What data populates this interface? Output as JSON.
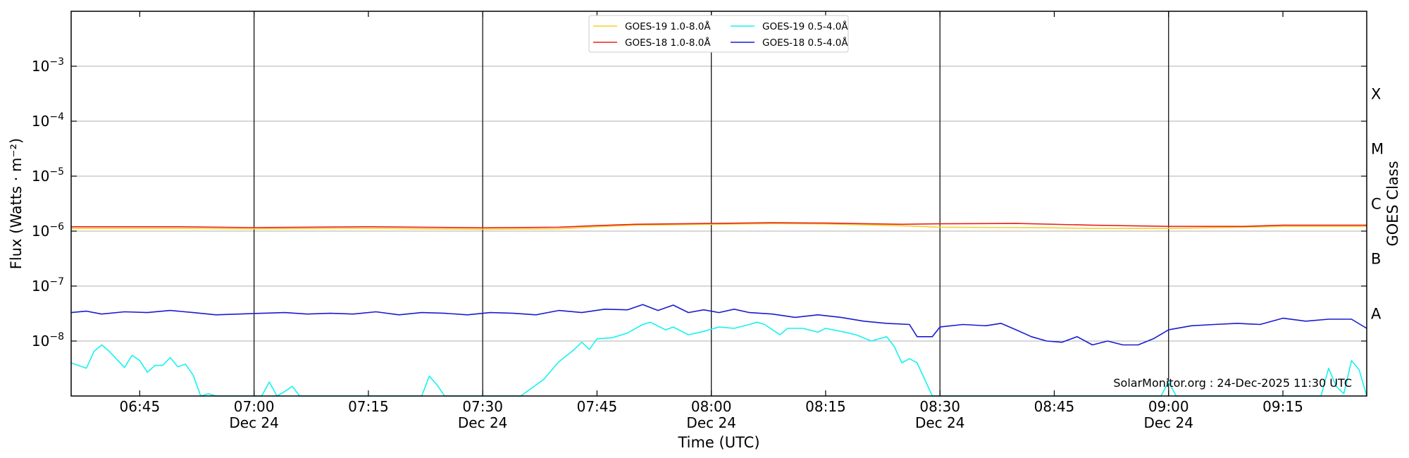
{
  "chart_data": {
    "type": "line",
    "xlabel": "Time (UTC)",
    "ylabel": "Flux (Watts · m⁻²)",
    "y2label": "GOES Class",
    "yscale": "log",
    "xlim": [
      "06:36",
      "09:26"
    ],
    "ylim": [
      1e-09,
      0.01
    ],
    "grid": "horizontal",
    "legend_position": "top-center",
    "credit": "SolarMonitor.org : 24-Dec-2025 11:30 UTC",
    "x_ticks": [
      {
        "time": "06:45",
        "label": "06:45",
        "date": ""
      },
      {
        "time": "07:00",
        "label": "07:00",
        "date": "Dec 24"
      },
      {
        "time": "07:15",
        "label": "07:15",
        "date": ""
      },
      {
        "time": "07:30",
        "label": "07:30",
        "date": "Dec 24"
      },
      {
        "time": "07:45",
        "label": "07:45",
        "date": ""
      },
      {
        "time": "08:00",
        "label": "08:00",
        "date": "Dec 24"
      },
      {
        "time": "08:15",
        "label": "08:15",
        "date": ""
      },
      {
        "time": "08:30",
        "label": "08:30",
        "date": "Dec 24"
      },
      {
        "time": "08:45",
        "label": "08:45",
        "date": ""
      },
      {
        "time": "09:00",
        "label": "09:00",
        "date": "Dec 24"
      },
      {
        "time": "09:15",
        "label": "09:15",
        "date": ""
      }
    ],
    "vertical_lines": [
      "07:00",
      "07:30",
      "08:00",
      "08:30",
      "09:00"
    ],
    "y_ticks": [
      {
        "value": 1e-08,
        "base": "10",
        "exp": "−8"
      },
      {
        "value": 1e-07,
        "base": "10",
        "exp": "−7"
      },
      {
        "value": 1e-06,
        "base": "10",
        "exp": "−6"
      },
      {
        "value": 1e-05,
        "base": "10",
        "exp": "−5"
      },
      {
        "value": 0.0001,
        "base": "10",
        "exp": "−4"
      },
      {
        "value": 0.001,
        "base": "10",
        "exp": "−3"
      }
    ],
    "class_labels": [
      {
        "label": "A",
        "value": 1e-08
      },
      {
        "label": "B",
        "value": 1e-07
      },
      {
        "label": "C",
        "value": 1e-06
      },
      {
        "label": "M",
        "value": 1e-05
      },
      {
        "label": "X",
        "value": 0.0001
      }
    ],
    "series": [
      {
        "name": "GOES-19 1.0-8.0Å",
        "color": "#f2d22e",
        "points": [
          [
            "06:36",
            1.12e-06
          ],
          [
            "06:50",
            1.12e-06
          ],
          [
            "07:00",
            1.1e-06
          ],
          [
            "07:15",
            1.12e-06
          ],
          [
            "07:30",
            1.08e-06
          ],
          [
            "07:40",
            1.1e-06
          ],
          [
            "07:45",
            1.2e-06
          ],
          [
            "07:50",
            1.28e-06
          ],
          [
            "08:00",
            1.33e-06
          ],
          [
            "08:08",
            1.37e-06
          ],
          [
            "08:15",
            1.35e-06
          ],
          [
            "08:25",
            1.25e-06
          ],
          [
            "08:30",
            1.18e-06
          ],
          [
            "08:45",
            1.15e-06
          ],
          [
            "08:50",
            1.12e-06
          ],
          [
            "09:00",
            1.12e-06
          ],
          [
            "09:10",
            1.18e-06
          ],
          [
            "09:15",
            1.22e-06
          ],
          [
            "09:26",
            1.22e-06
          ]
        ]
      },
      {
        "name": "GOES-18 1.0-8.0Å",
        "color": "#e8221a",
        "points": [
          [
            "06:36",
            1.2e-06
          ],
          [
            "06:50",
            1.2e-06
          ],
          [
            "07:00",
            1.16e-06
          ],
          [
            "07:15",
            1.2e-06
          ],
          [
            "07:30",
            1.15e-06
          ],
          [
            "07:40",
            1.18e-06
          ],
          [
            "07:45",
            1.26e-06
          ],
          [
            "07:50",
            1.33e-06
          ],
          [
            "08:00",
            1.38e-06
          ],
          [
            "08:08",
            1.42e-06
          ],
          [
            "08:15",
            1.4e-06
          ],
          [
            "08:25",
            1.33e-06
          ],
          [
            "08:30",
            1.36e-06
          ],
          [
            "08:40",
            1.38e-06
          ],
          [
            "08:50",
            1.28e-06
          ],
          [
            "09:00",
            1.22e-06
          ],
          [
            "09:10",
            1.22e-06
          ],
          [
            "09:15",
            1.28e-06
          ],
          [
            "09:26",
            1.28e-06
          ]
        ]
      },
      {
        "name": "GOES-19 0.5-4.0Å",
        "color": "#17f2f0",
        "points": [
          [
            "06:36",
            4e-09
          ],
          [
            "06:38",
            3.2e-09
          ],
          [
            "06:39",
            6.5e-09
          ],
          [
            "06:40",
            8.5e-09
          ],
          [
            "06:41",
            6.5e-09
          ],
          [
            "06:43",
            3.3e-09
          ],
          [
            "06:44",
            5.5e-09
          ],
          [
            "06:45",
            4.4e-09
          ],
          [
            "06:46",
            2.7e-09
          ],
          [
            "06:47",
            3.6e-09
          ],
          [
            "06:48",
            3.6e-09
          ],
          [
            "06:49",
            5e-09
          ],
          [
            "06:50",
            3.4e-09
          ],
          [
            "06:51",
            3.8e-09
          ],
          [
            "06:52",
            2.4e-09
          ],
          [
            "06:53",
            8e-10
          ],
          [
            "06:54",
            1.1e-09
          ],
          [
            "06:55",
            9e-10
          ],
          [
            "07:01",
            8e-10
          ],
          [
            "07:02",
            1.8e-09
          ],
          [
            "07:03",
            8e-10
          ],
          [
            "07:04",
            1.2e-09
          ],
          [
            "07:05",
            1.5e-09
          ],
          [
            "07:06",
            9e-10
          ],
          [
            "07:22",
            9e-10
          ],
          [
            "07:23",
            2.3e-09
          ],
          [
            "07:24",
            1.6e-09
          ],
          [
            "07:25",
            9e-10
          ],
          [
            "07:35",
            9e-10
          ],
          [
            "07:38",
            2e-09
          ],
          [
            "07:40",
            4.2e-09
          ],
          [
            "07:42",
            7e-09
          ],
          [
            "07:43",
            9.5e-09
          ],
          [
            "07:44",
            7e-09
          ],
          [
            "07:45",
            1.1e-08
          ],
          [
            "07:47",
            1.15e-08
          ],
          [
            "07:49",
            1.4e-08
          ],
          [
            "07:51",
            2e-08
          ],
          [
            "07:52",
            2.2e-08
          ],
          [
            "07:54",
            1.6e-08
          ],
          [
            "07:55",
            1.8e-08
          ],
          [
            "07:57",
            1.3e-08
          ],
          [
            "07:59",
            1.5e-08
          ],
          [
            "08:01",
            1.8e-08
          ],
          [
            "08:03",
            1.7e-08
          ],
          [
            "08:05",
            2e-08
          ],
          [
            "08:06",
            2.2e-08
          ],
          [
            "08:07",
            2e-08
          ],
          [
            "08:09",
            1.3e-08
          ],
          [
            "08:10",
            1.7e-08
          ],
          [
            "08:12",
            1.7e-08
          ],
          [
            "08:14",
            1.45e-08
          ],
          [
            "08:15",
            1.7e-08
          ],
          [
            "08:17",
            1.5e-08
          ],
          [
            "08:19",
            1.3e-08
          ],
          [
            "08:21",
            1e-08
          ],
          [
            "08:23",
            1.2e-08
          ],
          [
            "08:24",
            8e-09
          ],
          [
            "08:25",
            4e-09
          ],
          [
            "08:26",
            4.8e-09
          ],
          [
            "08:27",
            4e-09
          ],
          [
            "08:28",
            2e-09
          ],
          [
            "08:29",
            1e-09
          ],
          [
            "08:30",
            8e-10
          ],
          [
            "08:59",
            8e-10
          ],
          [
            "09:00",
            1.8e-09
          ],
          [
            "09:01",
            1e-09
          ],
          [
            "09:02",
            8e-10
          ],
          [
            "09:20",
            8e-10
          ],
          [
            "09:21",
            3.2e-09
          ],
          [
            "09:22",
            1.5e-09
          ],
          [
            "09:23",
            1.1e-09
          ],
          [
            "09:24",
            4.4e-09
          ],
          [
            "09:25",
            3e-09
          ],
          [
            "09:26",
            1e-09
          ]
        ]
      },
      {
        "name": "GOES-18 0.5-4.0Å",
        "color": "#1a1ad2",
        "points": [
          [
            "06:36",
            3.3e-08
          ],
          [
            "06:38",
            3.5e-08
          ],
          [
            "06:40",
            3.1e-08
          ],
          [
            "06:43",
            3.4e-08
          ],
          [
            "06:46",
            3.3e-08
          ],
          [
            "06:49",
            3.6e-08
          ],
          [
            "06:52",
            3.3e-08
          ],
          [
            "06:55",
            3e-08
          ],
          [
            "06:58",
            3.1e-08
          ],
          [
            "07:01",
            3.2e-08
          ],
          [
            "07:04",
            3.3e-08
          ],
          [
            "07:07",
            3.1e-08
          ],
          [
            "07:10",
            3.2e-08
          ],
          [
            "07:13",
            3.1e-08
          ],
          [
            "07:16",
            3.4e-08
          ],
          [
            "07:19",
            3e-08
          ],
          [
            "07:22",
            3.3e-08
          ],
          [
            "07:25",
            3.2e-08
          ],
          [
            "07:28",
            3e-08
          ],
          [
            "07:31",
            3.3e-08
          ],
          [
            "07:34",
            3.2e-08
          ],
          [
            "07:37",
            3e-08
          ],
          [
            "07:40",
            3.6e-08
          ],
          [
            "07:43",
            3.3e-08
          ],
          [
            "07:46",
            3.8e-08
          ],
          [
            "07:49",
            3.7e-08
          ],
          [
            "07:51",
            4.6e-08
          ],
          [
            "07:53",
            3.6e-08
          ],
          [
            "07:55",
            4.5e-08
          ],
          [
            "07:57",
            3.3e-08
          ],
          [
            "07:59",
            3.7e-08
          ],
          [
            "08:01",
            3.3e-08
          ],
          [
            "08:03",
            3.8e-08
          ],
          [
            "08:05",
            3.3e-08
          ],
          [
            "08:08",
            3.1e-08
          ],
          [
            "08:11",
            2.7e-08
          ],
          [
            "08:14",
            3e-08
          ],
          [
            "08:17",
            2.7e-08
          ],
          [
            "08:20",
            2.3e-08
          ],
          [
            "08:23",
            2.1e-08
          ],
          [
            "08:26",
            2e-08
          ],
          [
            "08:27",
            1.2e-08
          ],
          [
            "08:29",
            1.2e-08
          ],
          [
            "08:30",
            1.8e-08
          ],
          [
            "08:33",
            2e-08
          ],
          [
            "08:36",
            1.9e-08
          ],
          [
            "08:38",
            2.1e-08
          ],
          [
            "08:40",
            1.6e-08
          ],
          [
            "08:42",
            1.2e-08
          ],
          [
            "08:44",
            1e-08
          ],
          [
            "08:46",
            9.5e-09
          ],
          [
            "08:48",
            1.2e-08
          ],
          [
            "08:50",
            8.5e-09
          ],
          [
            "08:52",
            1e-08
          ],
          [
            "08:54",
            8.5e-09
          ],
          [
            "08:56",
            8.5e-09
          ],
          [
            "08:58",
            1.1e-08
          ],
          [
            "09:00",
            1.6e-08
          ],
          [
            "09:03",
            1.9e-08
          ],
          [
            "09:06",
            2e-08
          ],
          [
            "09:09",
            2.1e-08
          ],
          [
            "09:12",
            2e-08
          ],
          [
            "09:15",
            2.6e-08
          ],
          [
            "09:18",
            2.3e-08
          ],
          [
            "09:21",
            2.5e-08
          ],
          [
            "09:24",
            2.5e-08
          ],
          [
            "09:26",
            1.7e-08
          ]
        ]
      }
    ]
  }
}
